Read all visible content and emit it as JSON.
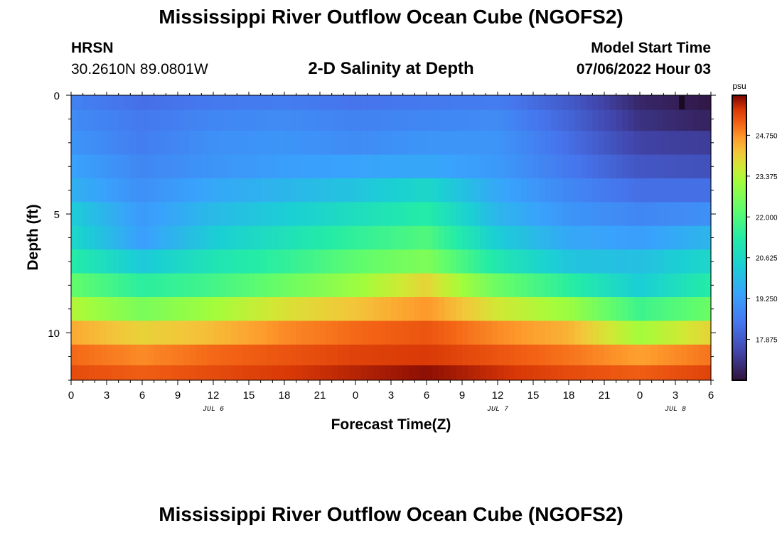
{
  "page": {
    "title": "Mississippi River Outflow Ocean Cube (NGOFS2)",
    "footer_title": "Mississippi River Outflow Ocean Cube (NGOFS2)",
    "station": "HRSN",
    "coords": "30.2610N  89.0801W",
    "subtitle": "2-D Salinity at Depth",
    "model_start_label": "Model Start Time",
    "model_start_value": "07/06/2022 Hour 03"
  },
  "chart_data": {
    "type": "heatmap",
    "title": "2-D Salinity at Depth",
    "xlabel": "Forecast Time(Z)",
    "ylabel": "Depth (ft)",
    "x_range": [
      0,
      54
    ],
    "y_range": [
      0,
      12
    ],
    "x_tick_labels": [
      "0",
      "3",
      "6",
      "9",
      "12",
      "15",
      "18",
      "21",
      "0",
      "3",
      "6",
      "9",
      "12",
      "15",
      "18",
      "21",
      "0",
      "3",
      "6"
    ],
    "x_tick_values": [
      0,
      3,
      6,
      9,
      12,
      15,
      18,
      21,
      24,
      27,
      30,
      33,
      36,
      39,
      42,
      45,
      48,
      51,
      54
    ],
    "y_tick_labels": [
      "0",
      "5",
      "10"
    ],
    "y_tick_values": [
      0,
      5,
      10
    ],
    "date_labels": [
      {
        "text": "JUL 6",
        "hour": 12
      },
      {
        "text": "JUL 7",
        "hour": 36
      },
      {
        "text": "JUL 8",
        "hour": 51
      }
    ],
    "colorbar": {
      "unit": "psu",
      "min": 16.5,
      "max": 26.1,
      "tick_values": [
        17.875,
        19.25,
        20.625,
        22.0,
        23.375,
        24.75
      ],
      "tick_labels": [
        "17.875",
        "19.250",
        "20.625",
        "22.000",
        "23.375",
        "24.750"
      ]
    },
    "time_hours": [
      0,
      6,
      12,
      18,
      24,
      30,
      36,
      42,
      48,
      54
    ],
    "depth_layers_ft": [
      0.25,
      1.0,
      2.0,
      3.0,
      4.0,
      5.0,
      6.0,
      7.0,
      8.0,
      9.0,
      10.0,
      11.0,
      11.75
    ],
    "salinity": [
      [
        18.7,
        18.3,
        18.5,
        18.6,
        18.4,
        18.5,
        18.6,
        17.9,
        16.9,
        16.6
      ],
      [
        18.9,
        18.5,
        18.8,
        18.9,
        18.7,
        18.8,
        18.9,
        18.1,
        17.1,
        16.8
      ],
      [
        19.1,
        18.6,
        19.0,
        19.1,
        18.9,
        19.1,
        19.1,
        18.3,
        17.4,
        17.3
      ],
      [
        19.4,
        18.8,
        19.1,
        19.3,
        19.4,
        19.5,
        19.2,
        18.5,
        17.8,
        17.7
      ],
      [
        19.7,
        19.0,
        19.5,
        19.8,
        20.1,
        20.6,
        19.5,
        18.8,
        18.3,
        18.3
      ],
      [
        20.3,
        19.2,
        19.9,
        20.3,
        20.8,
        21.3,
        19.8,
        19.1,
        18.8,
        19.0
      ],
      [
        20.6,
        19.3,
        20.3,
        20.9,
        21.5,
        22.0,
        20.3,
        19.5,
        19.3,
        19.8
      ],
      [
        21.3,
        20.2,
        21.0,
        21.5,
        22.2,
        22.7,
        21.1,
        20.1,
        20.0,
        20.6
      ],
      [
        22.3,
        21.4,
        21.8,
        22.4,
        23.1,
        24.0,
        22.4,
        21.4,
        20.3,
        21.3
      ],
      [
        23.4,
        22.6,
        23.2,
        23.8,
        24.2,
        24.7,
        23.7,
        23.1,
        21.7,
        22.4
      ],
      [
        24.5,
        24.0,
        24.3,
        24.8,
        25.1,
        25.3,
        24.8,
        24.4,
        23.2,
        24.0
      ],
      [
        25.1,
        24.8,
        25.1,
        25.3,
        25.5,
        25.6,
        25.3,
        25.0,
        24.6,
        25.0
      ],
      [
        25.4,
        25.2,
        25.4,
        25.6,
        25.8,
        26.0,
        25.7,
        25.4,
        25.2,
        25.5
      ]
    ]
  }
}
